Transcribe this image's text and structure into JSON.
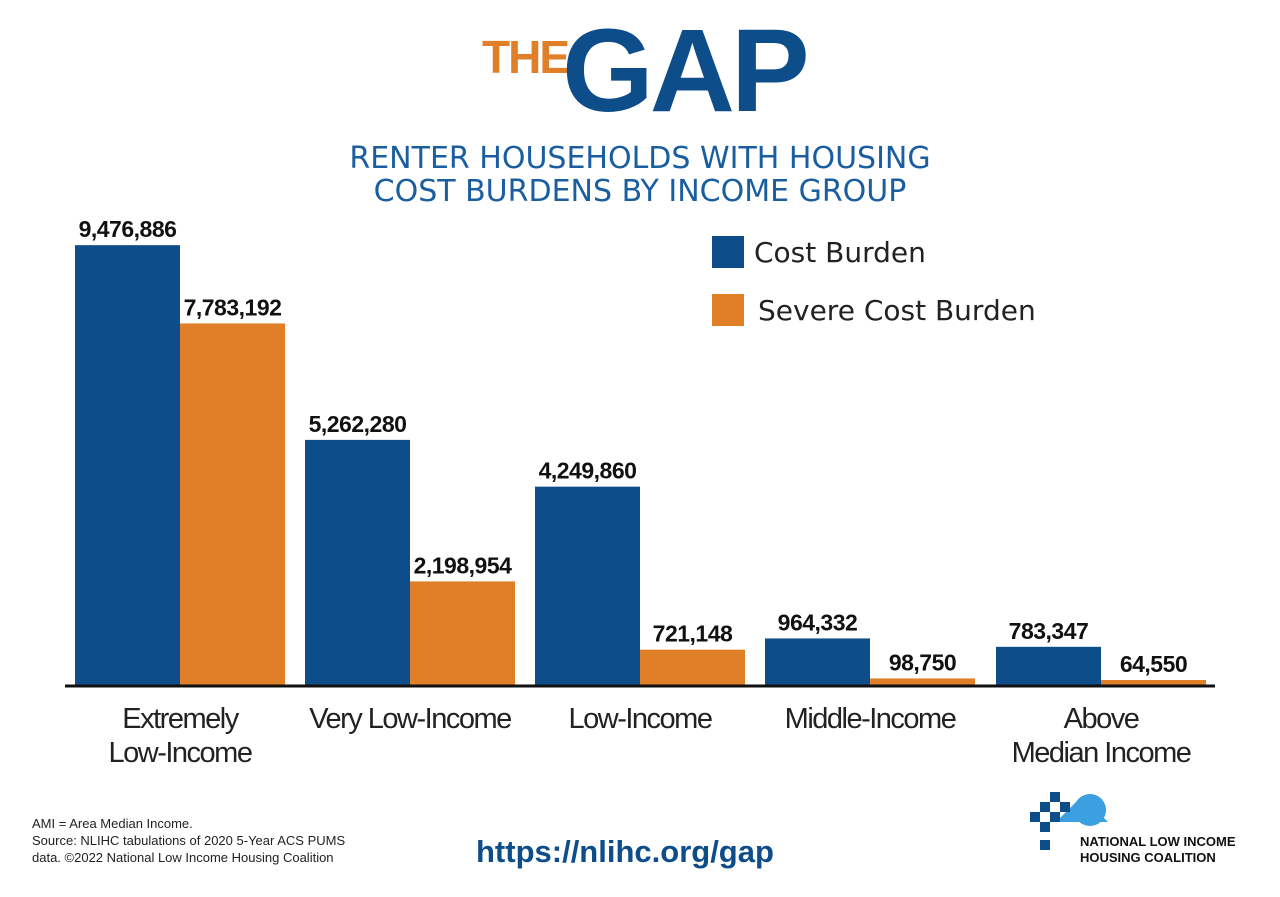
{
  "brand": {
    "the": "THE",
    "gap": "GAP"
  },
  "subtitle": {
    "line1": "RENTER HOUSEHOLDS WITH HOUSING",
    "line2": "COST BURDENS BY INCOME GROUP"
  },
  "colors": {
    "cost_burden": "#0d4d8a",
    "severe_cost_burden": "#e07f27",
    "title_accent": "#e07f27",
    "title_main": "#0d4d8a"
  },
  "chart_data": {
    "type": "bar",
    "title": "RENTER HOUSEHOLDS WITH HOUSING COST BURDENS BY INCOME GROUP",
    "categories": [
      [
        "Extremely",
        "Low-Income"
      ],
      [
        "Very Low-Income"
      ],
      [
        "Low-Income"
      ],
      [
        "Middle-Income"
      ],
      [
        "Above",
        "Median Income"
      ]
    ],
    "series": [
      {
        "name": "Cost Burden",
        "values": [
          9476886,
          5262280,
          4249860,
          964332,
          783347
        ],
        "labels": [
          "9,476,886",
          "5,262,280",
          "4,249,860",
          "964,332",
          "783,347"
        ]
      },
      {
        "name": "Severe Cost Burden",
        "values": [
          7783192,
          2198954,
          721148,
          98750,
          64550
        ],
        "labels": [
          "7,783,192",
          "2,198,954",
          "721,148",
          "98,750",
          "64,550"
        ]
      }
    ],
    "ylim": [
      0,
      10000000
    ],
    "legend": "top-right",
    "grid": false
  },
  "footnote": {
    "line1": "AMI = Area Median Income.",
    "line2": "Source: NLIHC tabulations of 2020 5-Year ACS PUMS",
    "line3": "data. ©2022 National Low Income Housing Coalition"
  },
  "url": "https://nlihc.org/gap",
  "org": {
    "line1": "NATIONAL LOW INCOME",
    "line2": "HOUSING COALITION",
    "logo_icon": "house-pixel-logo-icon"
  }
}
